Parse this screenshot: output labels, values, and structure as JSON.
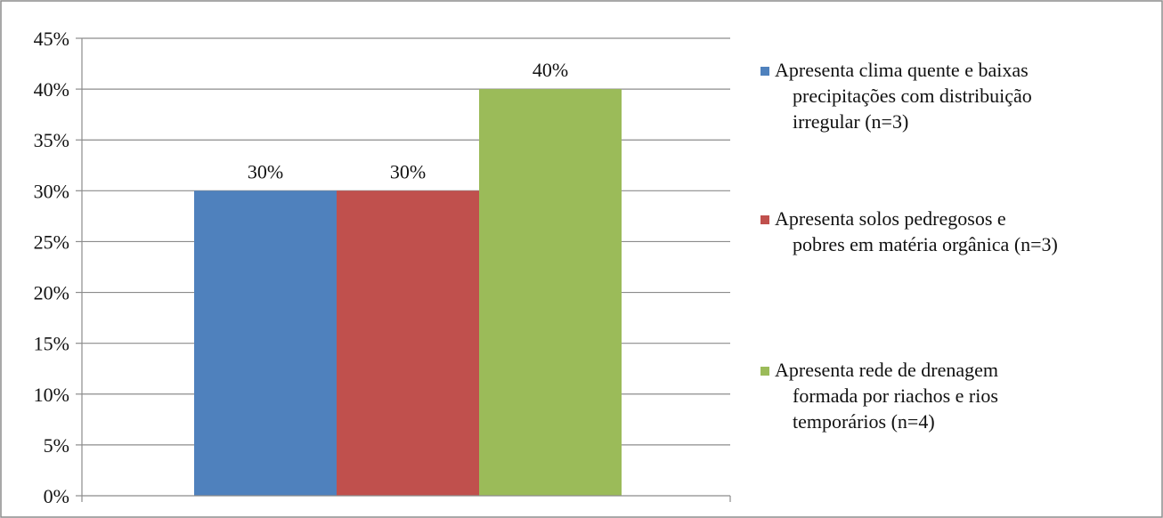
{
  "chart_data": {
    "type": "bar",
    "title": "",
    "xlabel": "",
    "ylabel": "",
    "ylim": [
      0,
      45
    ],
    "yticks": [
      "0%",
      "5%",
      "10%",
      "15%",
      "20%",
      "25%",
      "30%",
      "35%",
      "40%",
      "45%"
    ],
    "grid": true,
    "legend_position": "right",
    "series": [
      {
        "name": "Apresenta clima quente e baixas precipitações com distribuição irregular (n=3)",
        "legend_lines": [
          "Apresenta clima quente e baixas",
          "precipitações com distribuição",
          "irregular (n=3)"
        ],
        "value": 30,
        "label": "30%",
        "color": "#4F81BD"
      },
      {
        "name": "Apresenta solos pedregosos e pobres em matéria orgânica (n=3)",
        "legend_lines": [
          "Apresenta solos pedregosos e",
          "pobres em matéria orgânica (n=3)"
        ],
        "value": 30,
        "label": "30%",
        "color": "#C0504D"
      },
      {
        "name": "Apresenta rede de drenagem formada por riachos e rios temporários (n=4)",
        "legend_lines": [
          "Apresenta rede de drenagem",
          "formada por riachos e rios",
          "temporários (n=4)"
        ],
        "value": 40,
        "label": "40%",
        "color": "#9BBB59"
      }
    ]
  }
}
